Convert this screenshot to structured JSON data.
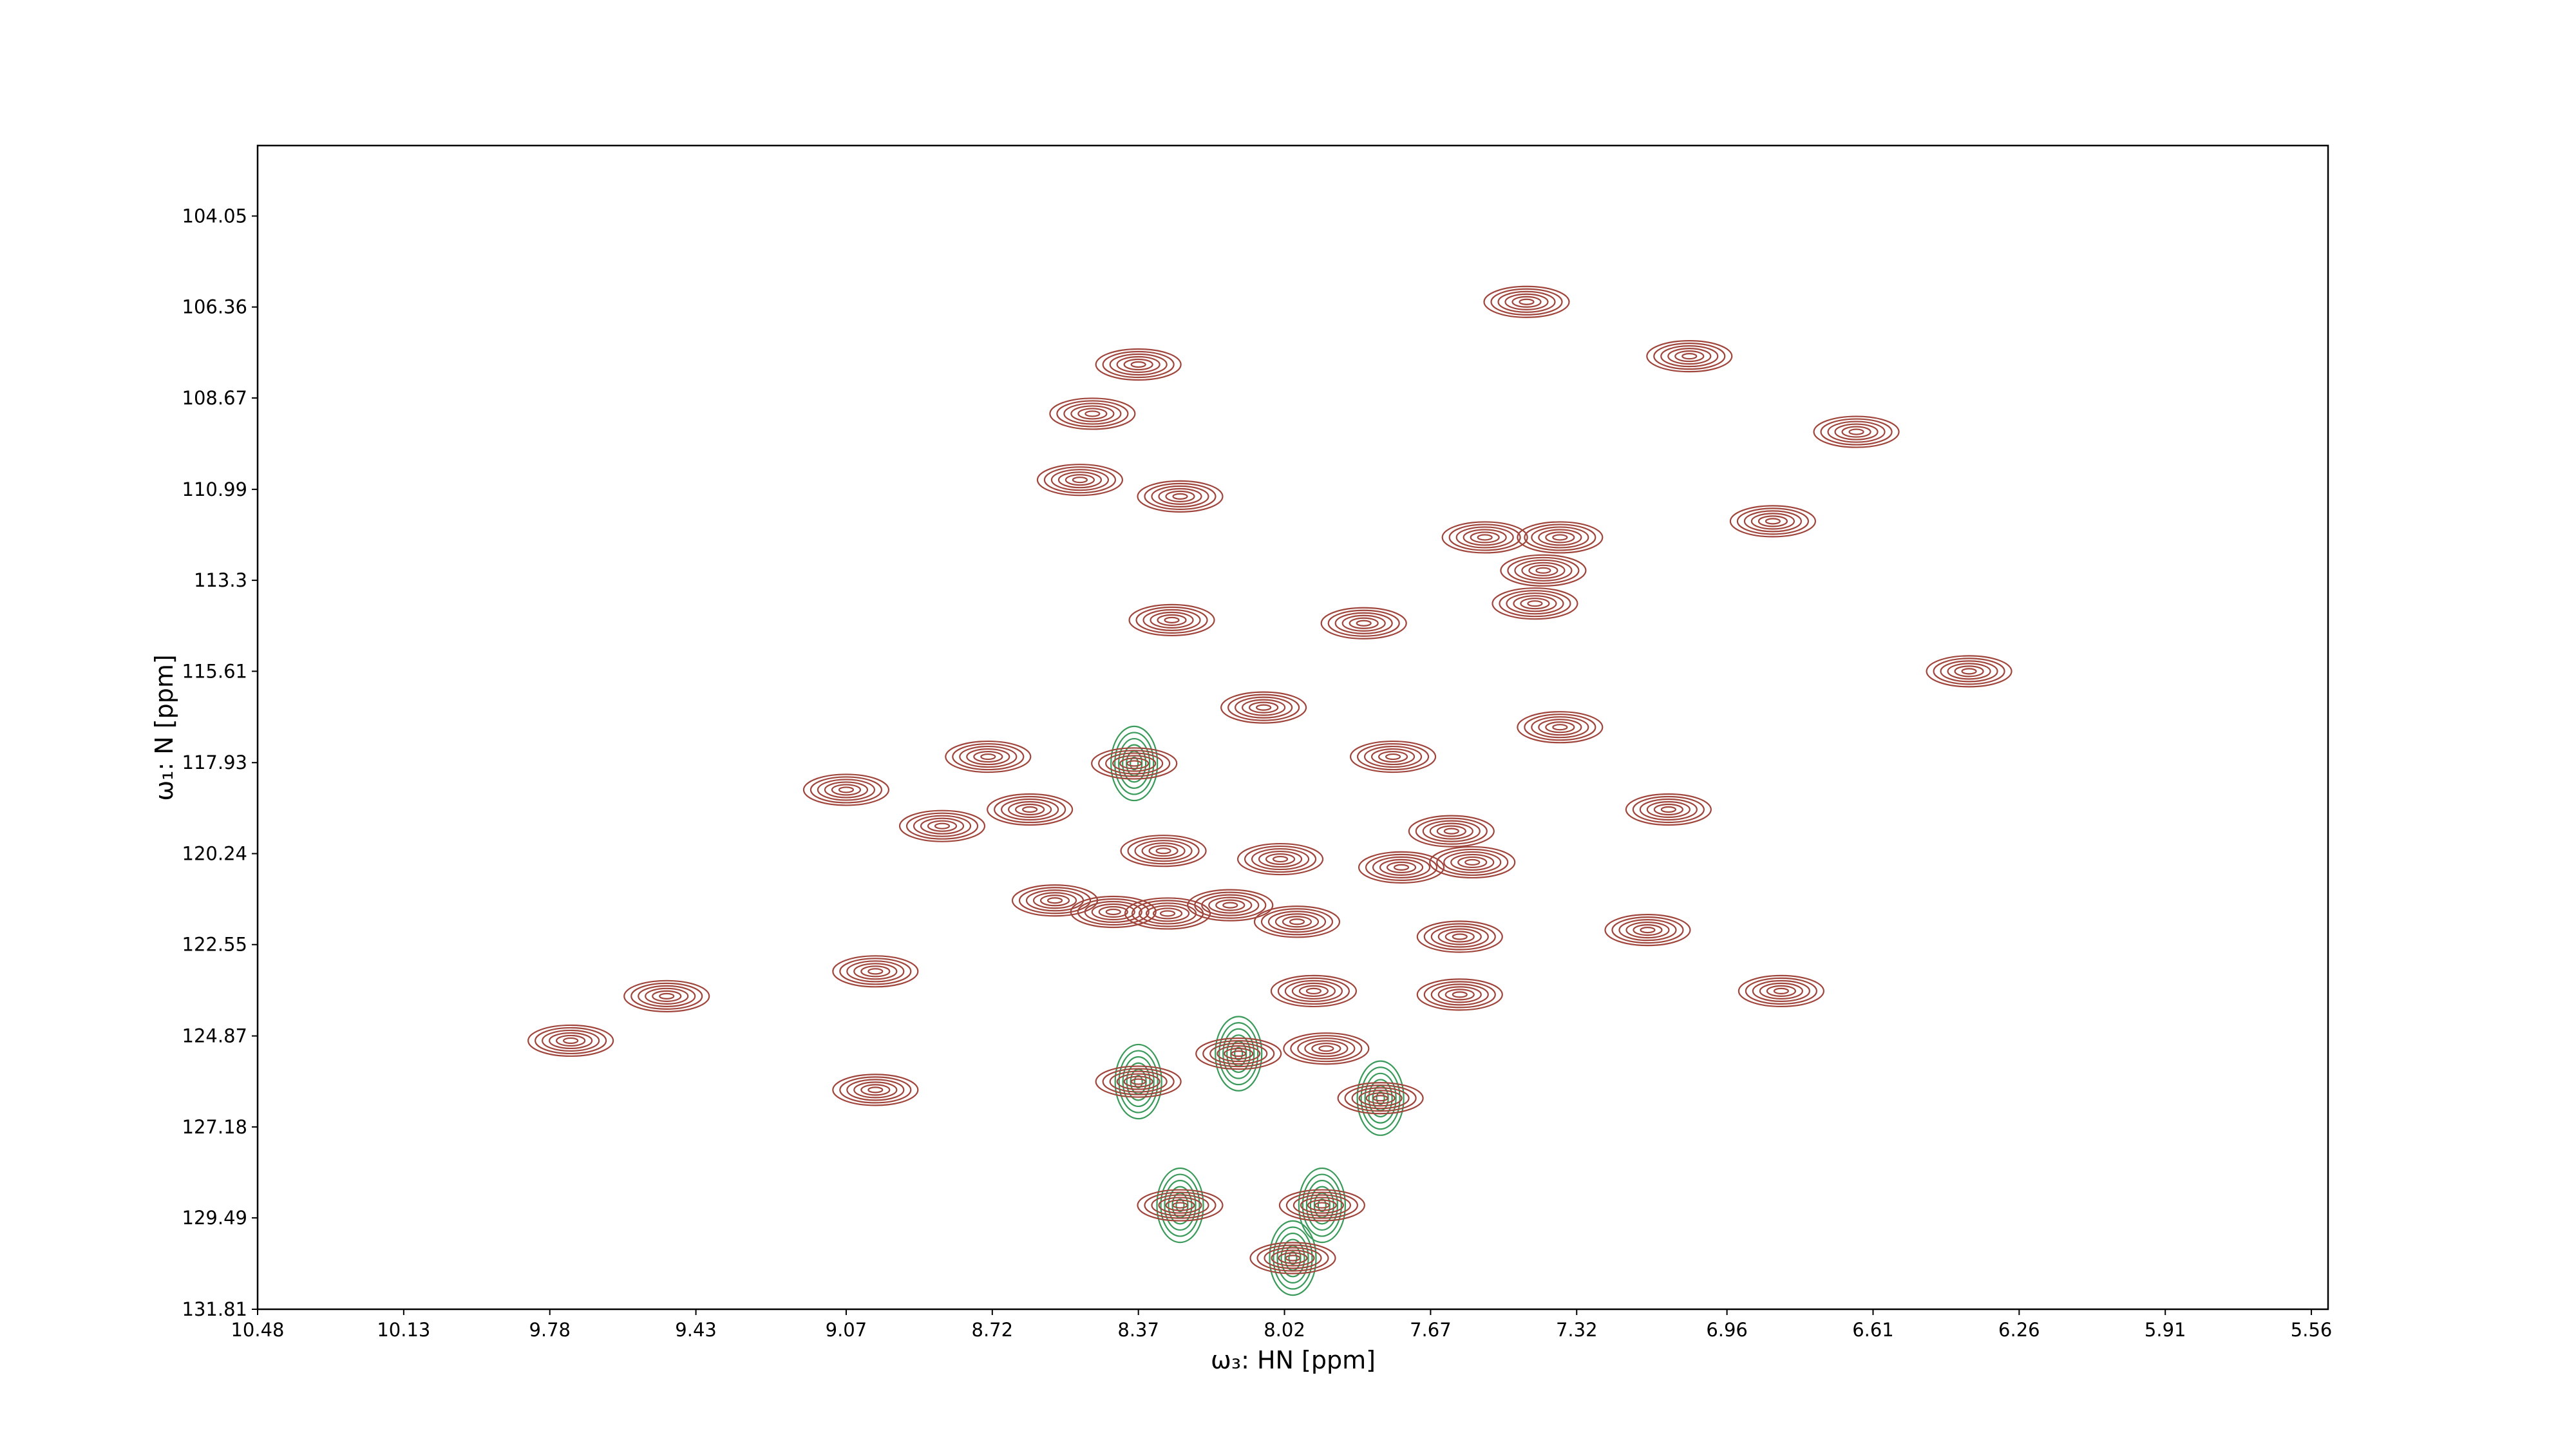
{
  "chart_data": {
    "type": "contour",
    "xlabel": "ω₃: HN [ppm]",
    "ylabel": "ω₁: N [ppm]",
    "xlim": [
      10.48,
      5.52
    ],
    "ylim": [
      131.81,
      102.26
    ],
    "xticks": [
      10.48,
      10.13,
      9.78,
      9.43,
      9.07,
      8.72,
      8.37,
      8.02,
      7.67,
      7.32,
      6.96,
      6.61,
      6.26,
      5.91,
      5.56
    ],
    "yticks": [
      104.05,
      106.36,
      108.67,
      110.99,
      113.3,
      115.61,
      117.93,
      120.24,
      122.55,
      124.87,
      127.18,
      129.49,
      131.81
    ],
    "series": [
      {
        "color": "#3a9a5a",
        "x": [
          8.38,
          8.37,
          8.13,
          7.79,
          8.27,
          7.93,
          8.0
        ],
        "y": [
          117.95,
          126.03,
          125.32,
          126.45,
          129.17,
          129.17,
          130.51
        ]
      },
      {
        "color": "#a0453c",
        "x": [
          7.44,
          8.37,
          6.65,
          7.05,
          8.27,
          8.51,
          8.48,
          6.85,
          7.54,
          7.4,
          7.36,
          8.29,
          7.83,
          7.42,
          6.38,
          7.36,
          8.07,
          8.73,
          8.38,
          7.76,
          9.07,
          7.1,
          8.63,
          8.84,
          7.62,
          8.31,
          8.03,
          7.74,
          7.57,
          8.57,
          8.43,
          8.3,
          8.15,
          7.99,
          7.6,
          7.15,
          9.0,
          7.95,
          7.6,
          6.83,
          9.5,
          9.73,
          8.13,
          7.92,
          8.37,
          7.79,
          9.0,
          8.27,
          7.93,
          8.0
        ],
        "y": [
          106.23,
          107.82,
          109.53,
          107.61,
          111.17,
          110.75,
          109.07,
          111.8,
          112.21,
          113.05,
          112.21,
          114.31,
          114.39,
          113.89,
          115.61,
          117.03,
          116.53,
          117.78,
          117.95,
          117.78,
          118.62,
          119.12,
          119.12,
          119.54,
          119.67,
          120.17,
          120.38,
          120.59,
          120.46,
          121.43,
          121.72,
          121.76,
          121.55,
          121.97,
          122.35,
          122.18,
          123.23,
          123.73,
          123.82,
          123.73,
          123.86,
          124.99,
          125.32,
          125.19,
          126.03,
          126.45,
          126.24,
          129.17,
          129.17,
          130.51
        ]
      }
    ]
  }
}
